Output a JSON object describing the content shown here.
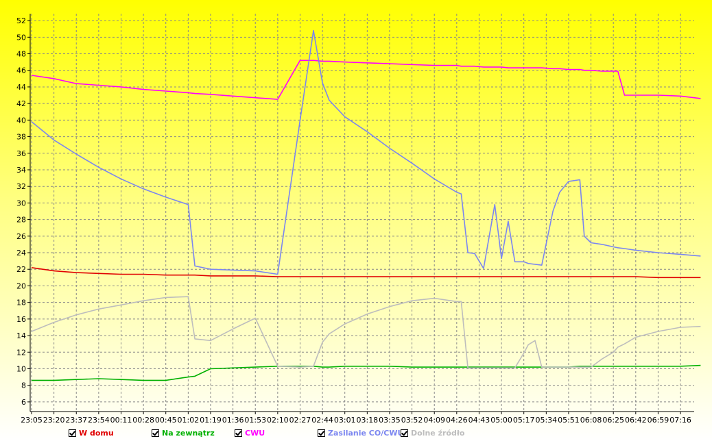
{
  "chart_data": {
    "type": "line",
    "title": "",
    "xlabel": "",
    "ylabel": "",
    "ylim": [
      5,
      53
    ],
    "grid": true,
    "y_ticks": [
      6,
      8,
      10,
      12,
      14,
      16,
      18,
      20,
      22,
      24,
      26,
      28,
      30,
      32,
      34,
      36,
      38,
      40,
      42,
      44,
      46,
      48,
      50,
      52
    ],
    "x_ticks": [
      "23:05",
      "23:20",
      "23:37",
      "23:54",
      "00:11",
      "00:28",
      "00:45",
      "01:02",
      "01:19",
      "01:36",
      "01:53",
      "02:10",
      "02:27",
      "02:44",
      "03:01",
      "03:18",
      "03:35",
      "03:52",
      "04:09",
      "04:26",
      "04:43",
      "05:00",
      "05:17",
      "05:34",
      "05:51",
      "06:08",
      "06:25",
      "06:42",
      "06:59",
      "07:16"
    ],
    "x": [
      0,
      1,
      2,
      3,
      4,
      5,
      6,
      7,
      7.3,
      8,
      9,
      10,
      11,
      12,
      12.6,
      13,
      13.3,
      14,
      15,
      16,
      17,
      18,
      19,
      19.2,
      19.5,
      19.8,
      20.2,
      20.7,
      21,
      21.3,
      21.6,
      22,
      22.2,
      22.5,
      22.8,
      23.3,
      23.6,
      24,
      24.5,
      24.7,
      25,
      25.5,
      26,
      26.2,
      26.5,
      27,
      28,
      29,
      29.9
    ],
    "series": [
      {
        "name": "W domu",
        "color": "#e00000",
        "values": [
          22.2,
          21.8,
          21.6,
          21.5,
          21.4,
          21.4,
          21.3,
          21.3,
          21.3,
          21.2,
          21.2,
          21.2,
          21.1,
          21.1,
          21.1,
          21.1,
          21.1,
          21.1,
          21.1,
          21.1,
          21.1,
          21.1,
          21.1,
          21.1,
          21.1,
          21.1,
          21.1,
          21.1,
          21.1,
          21.1,
          21.1,
          21.1,
          21.1,
          21.1,
          21.1,
          21.1,
          21.1,
          21.1,
          21.1,
          21.1,
          21.1,
          21.1,
          21.1,
          21.1,
          21.1,
          21.1,
          21.0,
          21.0,
          21.0
        ]
      },
      {
        "name": "Na zewnątrz",
        "color": "#00b000",
        "values": [
          8.6,
          8.6,
          8.7,
          8.8,
          8.7,
          8.6,
          8.6,
          9.0,
          9.1,
          10.0,
          10.1,
          10.2,
          10.3,
          10.3,
          10.3,
          10.2,
          10.2,
          10.3,
          10.3,
          10.3,
          10.2,
          10.2,
          10.2,
          10.2,
          10.2,
          10.2,
          10.2,
          10.2,
          10.2,
          10.2,
          10.2,
          10.2,
          10.2,
          10.2,
          10.2,
          10.2,
          10.2,
          10.2,
          10.3,
          10.3,
          10.3,
          10.3,
          10.3,
          10.3,
          10.3,
          10.3,
          10.3,
          10.3,
          10.4
        ]
      },
      {
        "name": "CWU",
        "color": "#ff00ff",
        "values": [
          45.4,
          45.0,
          44.4,
          44.2,
          44.0,
          43.7,
          43.5,
          43.3,
          43.2,
          43.1,
          42.9,
          42.7,
          42.5,
          47.2,
          47.2,
          47.1,
          47.1,
          47.0,
          46.9,
          46.8,
          46.7,
          46.6,
          46.6,
          46.5,
          46.5,
          46.5,
          46.4,
          46.4,
          46.4,
          46.3,
          46.3,
          46.3,
          46.3,
          46.3,
          46.3,
          46.2,
          46.2,
          46.1,
          46.1,
          46.0,
          46.0,
          45.9,
          45.9,
          45.9,
          43.0,
          43.0,
          43.0,
          42.9,
          42.6
        ]
      },
      {
        "name": "Zasilanie CO/CWU",
        "color": "#7b86f0",
        "values": [
          39.8,
          37.6,
          35.9,
          34.3,
          32.9,
          31.7,
          30.7,
          29.8,
          22.4,
          22.0,
          21.9,
          21.8,
          21.4,
          40.0,
          50.8,
          44.5,
          42.4,
          40.4,
          38.6,
          36.6,
          34.8,
          32.9,
          31.3,
          31.1,
          24.0,
          23.9,
          22.1,
          29.8,
          23.3,
          27.8,
          22.9,
          22.9,
          22.7,
          22.6,
          22.5,
          29.0,
          31.3,
          32.6,
          32.8,
          26.0,
          25.2,
          25.0,
          24.7,
          24.6,
          24.5,
          24.3,
          24.0,
          23.8,
          23.6
        ]
      },
      {
        "name": "Dolne źródło",
        "color": "#bdbdbd",
        "values": [
          14.5,
          15.6,
          16.5,
          17.2,
          17.7,
          18.2,
          18.6,
          18.7,
          13.6,
          13.4,
          14.8,
          16.1,
          10.3,
          10.2,
          10.3,
          13.2,
          14.2,
          15.4,
          16.6,
          17.5,
          18.2,
          18.5,
          18.1,
          18.1,
          10.1,
          10.1,
          10.1,
          10.1,
          10.1,
          10.1,
          10.1,
          11.9,
          12.9,
          13.4,
          10.2,
          10.2,
          10.2,
          10.2,
          10.2,
          10.2,
          10.2,
          11.2,
          12.0,
          12.6,
          13.0,
          13.8,
          14.5,
          15.0,
          15.1
        ]
      }
    ]
  },
  "legend": [
    {
      "label": "W domu",
      "color": "#e00000"
    },
    {
      "label": "Na zewnątrz",
      "color": "#00b000"
    },
    {
      "label": "CWU",
      "color": "#ff00ff"
    },
    {
      "label": "Zasilanie CO/CWU",
      "color": "#7b86f0"
    },
    {
      "label": "Dolne źródło",
      "color": "#bdbdbd"
    }
  ]
}
